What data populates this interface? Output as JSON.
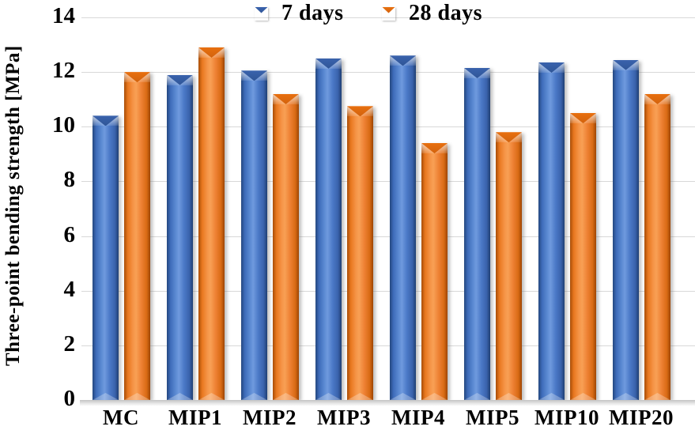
{
  "chart_data": {
    "type": "bar",
    "title": "",
    "xlabel": "",
    "ylabel": "Three-point bending strength [MPa]",
    "categories": [
      "MC",
      "MIP1",
      "MIP2",
      "MIP3",
      "MIP4",
      "MIP5",
      "MIP10",
      "MIP20"
    ],
    "series": [
      {
        "name": "7 days",
        "color": "#4472C4",
        "values": [
          10.4,
          11.9,
          12.05,
          12.5,
          12.6,
          12.15,
          12.35,
          12.45
        ]
      },
      {
        "name": "28 days",
        "color": "#ED7D31",
        "values": [
          12.0,
          12.9,
          11.2,
          10.75,
          9.4,
          9.8,
          10.5,
          11.2
        ]
      }
    ],
    "ylim": [
      0,
      14
    ],
    "yticks": [
      0,
      2,
      4,
      6,
      8,
      10,
      12,
      14
    ],
    "grid": "horizontal",
    "gridline_color": "#d8d8d8",
    "legend_position": "top"
  }
}
